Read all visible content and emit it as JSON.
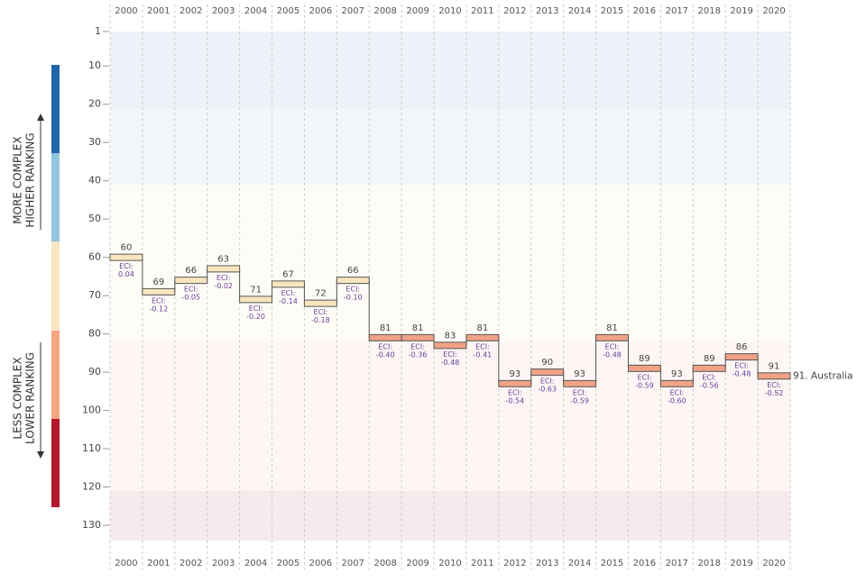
{
  "chart_data": {
    "type": "rank-steps",
    "categories": [
      "2000",
      "2001",
      "2002",
      "2003",
      "2004",
      "2005",
      "2006",
      "2007",
      "2008",
      "2009",
      "2010",
      "2011",
      "2012",
      "2013",
      "2014",
      "2015",
      "2016",
      "2017",
      "2018",
      "2019",
      "2020"
    ],
    "series": [
      {
        "name": "Australia",
        "values": [
          60,
          69,
          66,
          63,
          71,
          67,
          72,
          66,
          81,
          81,
          83,
          81,
          93,
          90,
          93,
          81,
          89,
          93,
          89,
          86,
          91
        ],
        "colors": [
          "#f9e5bd",
          "#f9e5bd",
          "#f9e5bd",
          "#f9e5bd",
          "#f9e5bd",
          "#f9e5bd",
          "#f9e5bd",
          "#f9e5bd",
          "#f0a285",
          "#f0a285",
          "#f0a285",
          "#f0a285",
          "#f0a285",
          "#f0a285",
          "#f0a285",
          "#f0a285",
          "#f0a285",
          "#f0a285",
          "#f0a285",
          "#f0a285",
          "#f0a285"
        ]
      }
    ],
    "eci": {
      "prefix": "ECI:",
      "values": [
        0.04,
        -0.12,
        -0.05,
        -0.02,
        -0.2,
        -0.14,
        -0.18,
        -0.1,
        -0.4,
        -0.36,
        -0.48,
        -0.41,
        -0.54,
        -0.63,
        -0.59,
        -0.48,
        -0.59,
        -0.6,
        -0.56,
        -0.48,
        -0.52
      ],
      "value_labels": [
        "0.04",
        "-0.12",
        "-0.05",
        "-0.02",
        "-0.20",
        "-0.14",
        "-0.18",
        "-0.10",
        "-0.40",
        "-0.36",
        "-0.48",
        "-0.41",
        "-0.54",
        "-0.63",
        "-0.59",
        "-0.48",
        "-0.59",
        "-0.60",
        "-0.56",
        "-0.48",
        "-0.52"
      ]
    },
    "end_label": "91. Australia",
    "ylim": [
      1,
      134
    ],
    "yticks": [
      1,
      10,
      20,
      30,
      40,
      50,
      60,
      70,
      80,
      90,
      100,
      110,
      120,
      130
    ],
    "y_reversed": true,
    "side_labels": {
      "top": [
        "MORE COMPLEX",
        "HIGHER RANKING"
      ],
      "bottom": [
        "LESS COMPLEX",
        "LOWER RANKING"
      ]
    }
  }
}
